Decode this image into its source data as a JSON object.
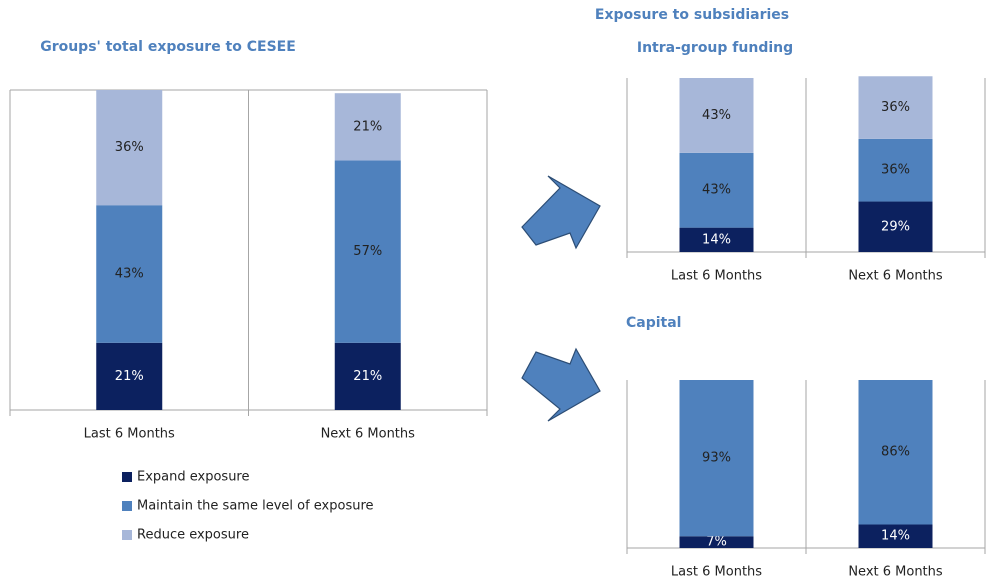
{
  "heading": "Exposure to subsidiaries",
  "chart_data": [
    {
      "type": "bar",
      "stacked": true,
      "title": "Groups' total exposure to CESEE",
      "categories": [
        "Last 6 Months",
        "Next 6 Months"
      ],
      "ylim": [
        0,
        100
      ],
      "series": [
        {
          "name": "Expand exposure",
          "color": "#0c215f",
          "values": [
            21,
            21
          ],
          "value_labels": [
            "21%",
            "21%"
          ]
        },
        {
          "name": "Maintain the same level of exposure",
          "color": "#4f81bd",
          "values": [
            43,
            57
          ],
          "value_labels": [
            "43%",
            "57%"
          ]
        },
        {
          "name": "Reduce exposure",
          "color": "#a7b7d9",
          "values": [
            36,
            21
          ],
          "value_labels": [
            "36%",
            "21%"
          ]
        }
      ]
    },
    {
      "type": "bar",
      "stacked": true,
      "title": "Intra-group funding",
      "categories": [
        "Last 6 Months",
        "Next 6 Months"
      ],
      "ylim": [
        0,
        100
      ],
      "series": [
        {
          "color": "#0c215f",
          "values": [
            14,
            29
          ],
          "value_labels": [
            "14%",
            "29%"
          ]
        },
        {
          "color": "#4f81bd",
          "values": [
            43,
            36
          ],
          "value_labels": [
            "43%",
            "36%"
          ]
        },
        {
          "color": "#a7b7d9",
          "values": [
            43,
            36
          ],
          "value_labels": [
            "43%",
            "36%"
          ]
        }
      ]
    },
    {
      "type": "bar",
      "stacked": true,
      "title": "Capital",
      "categories": [
        "Last 6 Months",
        "Next 6 Months"
      ],
      "ylim": [
        0,
        100
      ],
      "series": [
        {
          "color": "#0c215f",
          "values": [
            7,
            14
          ],
          "value_labels": [
            "7%",
            "14%"
          ]
        },
        {
          "color": "#4f81bd",
          "values": [
            93,
            86
          ],
          "value_labels": [
            "93%",
            "86%"
          ]
        }
      ]
    }
  ]
}
